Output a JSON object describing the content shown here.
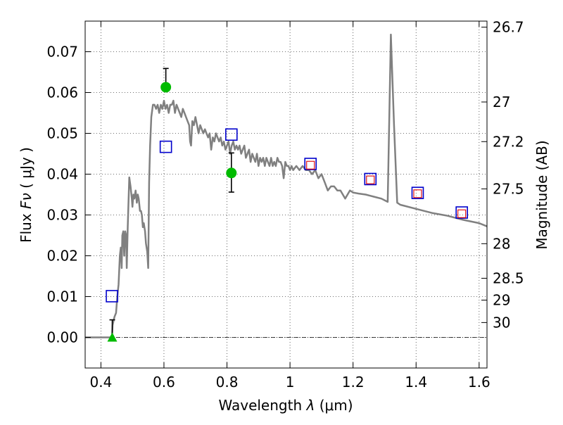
{
  "chart_data": {
    "type": "scatter",
    "title": "",
    "xlabel": "Wavelength",
    "xlabel_symbol": "λ",
    "xlabel_unit": "(μm)",
    "ylabel": "Flux",
    "ylabel_symbol": "Fν",
    "ylabel_unit": "( μJy )",
    "ylabel_right": "Magnitude (AB)",
    "xlim": [
      0.35,
      1.625
    ],
    "ylim": [
      -0.0075,
      0.0775
    ],
    "grid": true,
    "x_ticks": [
      {
        "value": 0.4,
        "label": "0.4"
      },
      {
        "value": 0.6,
        "label": "0.6"
      },
      {
        "value": 0.8,
        "label": "0.8"
      },
      {
        "value": 1.0,
        "label": "1"
      },
      {
        "value": 1.2,
        "label": "1.2"
      },
      {
        "value": 1.4,
        "label": "1.4"
      },
      {
        "value": 1.6,
        "label": "1.6"
      }
    ],
    "y_ticks": [
      {
        "value": 0.0,
        "label": "0.00"
      },
      {
        "value": 0.01,
        "label": "0.01"
      },
      {
        "value": 0.02,
        "label": "0.02"
      },
      {
        "value": 0.03,
        "label": "0.03"
      },
      {
        "value": 0.04,
        "label": "0.04"
      },
      {
        "value": 0.05,
        "label": "0.05"
      },
      {
        "value": 0.06,
        "label": "0.06"
      },
      {
        "value": 0.07,
        "label": "0.07"
      }
    ],
    "right_ticks": [
      {
        "label": "26.7",
        "flux": 0.07602
      },
      {
        "label": "27",
        "flux": 0.05768
      },
      {
        "label": "27.2",
        "flux": 0.04797
      },
      {
        "label": "27.5",
        "flux": 0.03639
      },
      {
        "label": "28",
        "flux": 0.02296
      },
      {
        "label": "28.5",
        "flux": 0.01449
      },
      {
        "label": "29",
        "flux": 0.00914
      },
      {
        "label": "30",
        "flux": 0.00364
      }
    ],
    "series": [
      {
        "type": "line",
        "color": "#808080",
        "points": [
          [
            0.35,
            0.0
          ],
          [
            0.435,
            0.0
          ],
          [
            0.437,
            0.003
          ],
          [
            0.443,
            0.005
          ],
          [
            0.448,
            0.006
          ],
          [
            0.452,
            0.01
          ],
          [
            0.456,
            0.013
          ],
          [
            0.46,
            0.02
          ],
          [
            0.463,
            0.022
          ],
          [
            0.466,
            0.017
          ],
          [
            0.468,
            0.025
          ],
          [
            0.471,
            0.026
          ],
          [
            0.474,
            0.02
          ],
          [
            0.477,
            0.026
          ],
          [
            0.48,
            0.025
          ],
          [
            0.482,
            0.017
          ],
          [
            0.485,
            0.027
          ],
          [
            0.49,
            0.0392
          ],
          [
            0.494,
            0.037
          ],
          [
            0.498,
            0.034
          ],
          [
            0.5,
            0.032
          ],
          [
            0.503,
            0.035
          ],
          [
            0.506,
            0.034
          ],
          [
            0.51,
            0.036
          ],
          [
            0.514,
            0.033
          ],
          [
            0.517,
            0.035
          ],
          [
            0.52,
            0.034
          ],
          [
            0.524,
            0.031
          ],
          [
            0.527,
            0.031
          ],
          [
            0.53,
            0.03
          ],
          [
            0.533,
            0.027
          ],
          [
            0.536,
            0.028
          ],
          [
            0.54,
            0.026
          ],
          [
            0.543,
            0.023
          ],
          [
            0.547,
            0.021
          ],
          [
            0.55,
            0.017
          ],
          [
            0.553,
            0.038
          ],
          [
            0.556,
            0.047
          ],
          [
            0.56,
            0.054
          ],
          [
            0.565,
            0.057
          ],
          [
            0.57,
            0.057
          ],
          [
            0.575,
            0.056
          ],
          [
            0.58,
            0.057
          ],
          [
            0.585,
            0.055
          ],
          [
            0.59,
            0.057
          ],
          [
            0.595,
            0.056
          ],
          [
            0.6,
            0.058
          ],
          [
            0.605,
            0.056
          ],
          [
            0.61,
            0.057
          ],
          [
            0.615,
            0.055
          ],
          [
            0.62,
            0.057
          ],
          [
            0.625,
            0.057
          ],
          [
            0.63,
            0.058
          ],
          [
            0.635,
            0.055
          ],
          [
            0.64,
            0.057
          ],
          [
            0.645,
            0.056
          ],
          [
            0.65,
            0.055
          ],
          [
            0.655,
            0.054
          ],
          [
            0.66,
            0.056
          ],
          [
            0.665,
            0.055
          ],
          [
            0.67,
            0.054
          ],
          [
            0.675,
            0.053
          ],
          [
            0.68,
            0.052
          ],
          [
            0.683,
            0.048
          ],
          [
            0.686,
            0.047
          ],
          [
            0.69,
            0.053
          ],
          [
            0.695,
            0.052
          ],
          [
            0.7,
            0.054
          ],
          [
            0.705,
            0.052
          ],
          [
            0.71,
            0.05
          ],
          [
            0.715,
            0.052
          ],
          [
            0.72,
            0.051
          ],
          [
            0.725,
            0.05
          ],
          [
            0.73,
            0.051
          ],
          [
            0.735,
            0.05
          ],
          [
            0.74,
            0.049
          ],
          [
            0.745,
            0.05
          ],
          [
            0.75,
            0.046
          ],
          [
            0.755,
            0.049
          ],
          [
            0.76,
            0.048
          ],
          [
            0.765,
            0.05
          ],
          [
            0.77,
            0.049
          ],
          [
            0.775,
            0.048
          ],
          [
            0.78,
            0.049
          ],
          [
            0.785,
            0.047
          ],
          [
            0.79,
            0.048
          ],
          [
            0.795,
            0.046
          ],
          [
            0.8,
            0.047
          ],
          [
            0.805,
            0.048
          ],
          [
            0.81,
            0.045
          ],
          [
            0.815,
            0.047
          ],
          [
            0.82,
            0.048
          ],
          [
            0.825,
            0.046
          ],
          [
            0.83,
            0.047
          ],
          [
            0.835,
            0.046
          ],
          [
            0.84,
            0.047
          ],
          [
            0.845,
            0.045
          ],
          [
            0.85,
            0.046
          ],
          [
            0.855,
            0.047
          ],
          [
            0.86,
            0.044
          ],
          [
            0.865,
            0.045
          ],
          [
            0.87,
            0.046
          ],
          [
            0.875,
            0.043
          ],
          [
            0.88,
            0.045
          ],
          [
            0.885,
            0.044
          ],
          [
            0.89,
            0.043
          ],
          [
            0.895,
            0.045
          ],
          [
            0.9,
            0.042
          ],
          [
            0.905,
            0.044
          ],
          [
            0.91,
            0.043
          ],
          [
            0.915,
            0.044
          ],
          [
            0.92,
            0.042
          ],
          [
            0.925,
            0.044
          ],
          [
            0.93,
            0.043
          ],
          [
            0.935,
            0.042
          ],
          [
            0.94,
            0.044
          ],
          [
            0.945,
            0.042
          ],
          [
            0.95,
            0.043
          ],
          [
            0.955,
            0.042
          ],
          [
            0.96,
            0.044
          ],
          [
            0.965,
            0.043
          ],
          [
            0.97,
            0.043
          ],
          [
            0.975,
            0.042
          ],
          [
            0.98,
            0.039
          ],
          [
            0.985,
            0.043
          ],
          [
            0.99,
            0.042
          ],
          [
            0.995,
            0.042
          ],
          [
            1.0,
            0.041
          ],
          [
            1.005,
            0.042
          ],
          [
            1.01,
            0.041
          ],
          [
            1.02,
            0.042
          ],
          [
            1.03,
            0.041
          ],
          [
            1.04,
            0.042
          ],
          [
            1.05,
            0.041
          ],
          [
            1.06,
            0.041
          ],
          [
            1.07,
            0.04
          ],
          [
            1.08,
            0.041
          ],
          [
            1.09,
            0.039
          ],
          [
            1.1,
            0.04
          ],
          [
            1.11,
            0.038
          ],
          [
            1.12,
            0.036
          ],
          [
            1.13,
            0.037
          ],
          [
            1.14,
            0.037
          ],
          [
            1.15,
            0.036
          ],
          [
            1.16,
            0.036
          ],
          [
            1.175,
            0.034
          ],
          [
            1.19,
            0.036
          ],
          [
            1.2,
            0.0355
          ],
          [
            1.22,
            0.0352
          ],
          [
            1.24,
            0.035
          ],
          [
            1.25,
            0.0348
          ],
          [
            1.27,
            0.0344
          ],
          [
            1.29,
            0.034
          ],
          [
            1.31,
            0.0332
          ],
          [
            1.32,
            0.0742
          ],
          [
            1.33,
            0.052
          ],
          [
            1.34,
            0.033
          ],
          [
            1.35,
            0.0325
          ],
          [
            1.4,
            0.0315
          ],
          [
            1.45,
            0.0305
          ],
          [
            1.5,
            0.0298
          ],
          [
            1.55,
            0.0288
          ],
          [
            1.6,
            0.028
          ],
          [
            1.625,
            0.0272
          ]
        ]
      },
      {
        "type": "marker",
        "marker": "square",
        "color": "#0000cc",
        "points": [
          [
            0.435,
            0.0101
          ],
          [
            0.606,
            0.0467
          ],
          [
            0.814,
            0.0497
          ],
          [
            1.065,
            0.0425
          ],
          [
            1.255,
            0.0388
          ],
          [
            1.405,
            0.0354
          ],
          [
            1.545,
            0.0306
          ]
        ]
      },
      {
        "type": "marker",
        "marker": "square-small",
        "color": "#dd0000",
        "points": [
          [
            1.065,
            0.0422
          ],
          [
            1.255,
            0.0386
          ],
          [
            1.405,
            0.0352
          ],
          [
            1.545,
            0.0303
          ]
        ]
      },
      {
        "type": "marker",
        "marker": "circle",
        "color": "#00bb00",
        "errorbars": true,
        "points": [
          [
            0.606,
            0.0613,
            0.0614,
            0.0659
          ],
          [
            0.814,
            0.0403,
            0.0356,
            0.0452
          ]
        ]
      },
      {
        "type": "marker",
        "marker": "triangle",
        "color": "#00bb00",
        "errorbars": true,
        "points": [
          [
            0.436,
            0.0,
            -0.0005,
            0.0043
          ]
        ]
      }
    ]
  }
}
